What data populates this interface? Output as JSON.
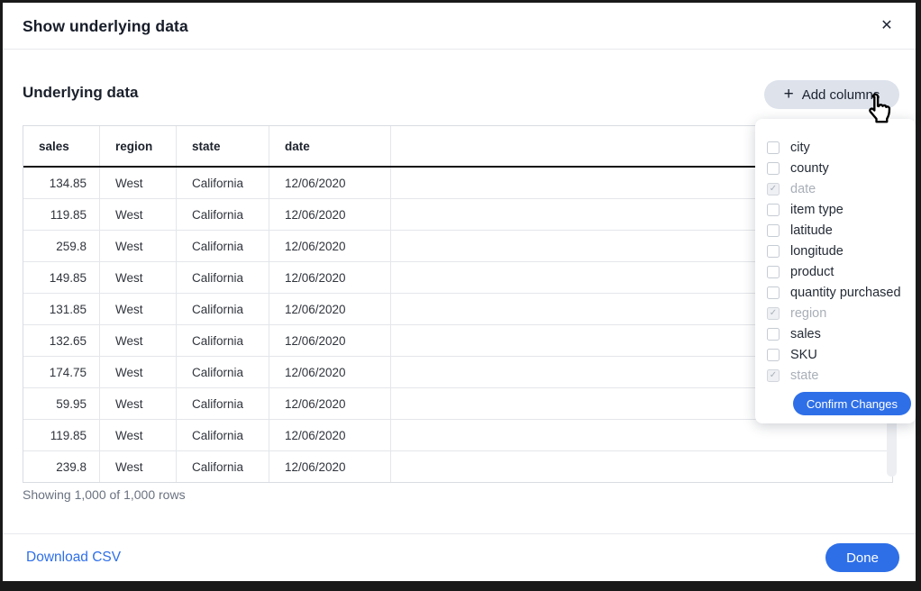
{
  "window": {
    "title": "Show underlying data",
    "close_icon": "✕"
  },
  "content": {
    "heading": "Underlying data",
    "add_columns": {
      "label": "Add columns",
      "plus_icon": "+"
    },
    "showing_text": "Showing 1,000 of 1,000 rows"
  },
  "table": {
    "columns": [
      "sales",
      "region",
      "state",
      "date",
      ""
    ],
    "rows": [
      [
        "134.85",
        "West",
        "California",
        "12/06/2020",
        ""
      ],
      [
        "119.85",
        "West",
        "California",
        "12/06/2020",
        ""
      ],
      [
        "259.8",
        "West",
        "California",
        "12/06/2020",
        ""
      ],
      [
        "149.85",
        "West",
        "California",
        "12/06/2020",
        ""
      ],
      [
        "131.85",
        "West",
        "California",
        "12/06/2020",
        ""
      ],
      [
        "132.65",
        "West",
        "California",
        "12/06/2020",
        ""
      ],
      [
        "174.75",
        "West",
        "California",
        "12/06/2020",
        ""
      ],
      [
        "59.95",
        "West",
        "California",
        "12/06/2020",
        ""
      ],
      [
        "119.85",
        "West",
        "California",
        "12/06/2020",
        ""
      ],
      [
        "239.8",
        "West",
        "California",
        "12/06/2020",
        ""
      ]
    ]
  },
  "add_columns_menu": {
    "check_glyph": "✓",
    "items": [
      {
        "label": "city",
        "checked": false,
        "disabled": false
      },
      {
        "label": "county",
        "checked": false,
        "disabled": false
      },
      {
        "label": "date",
        "checked": true,
        "disabled": true
      },
      {
        "label": "item type",
        "checked": false,
        "disabled": false
      },
      {
        "label": "latitude",
        "checked": false,
        "disabled": false
      },
      {
        "label": "longitude",
        "checked": false,
        "disabled": false
      },
      {
        "label": "product",
        "checked": false,
        "disabled": false
      },
      {
        "label": "quantity purchased",
        "checked": false,
        "disabled": false
      },
      {
        "label": "region",
        "checked": true,
        "disabled": true
      },
      {
        "label": "sales",
        "checked": false,
        "disabled": false
      },
      {
        "label": "SKU",
        "checked": false,
        "disabled": false
      },
      {
        "label": "state",
        "checked": true,
        "disabled": true
      }
    ],
    "confirm_label": "Confirm Changes"
  },
  "footer": {
    "download_link": "Download CSV",
    "done_label": "Done"
  },
  "colors": {
    "accent_blue": "#2e6fe8",
    "add_columns_bg": "#dde2eb",
    "header_underline": "#101010",
    "disabled_text": "#a9afb8",
    "muted_text": "#6a7280",
    "scrollbar_track": "#eceef2",
    "frame": "#191919"
  }
}
